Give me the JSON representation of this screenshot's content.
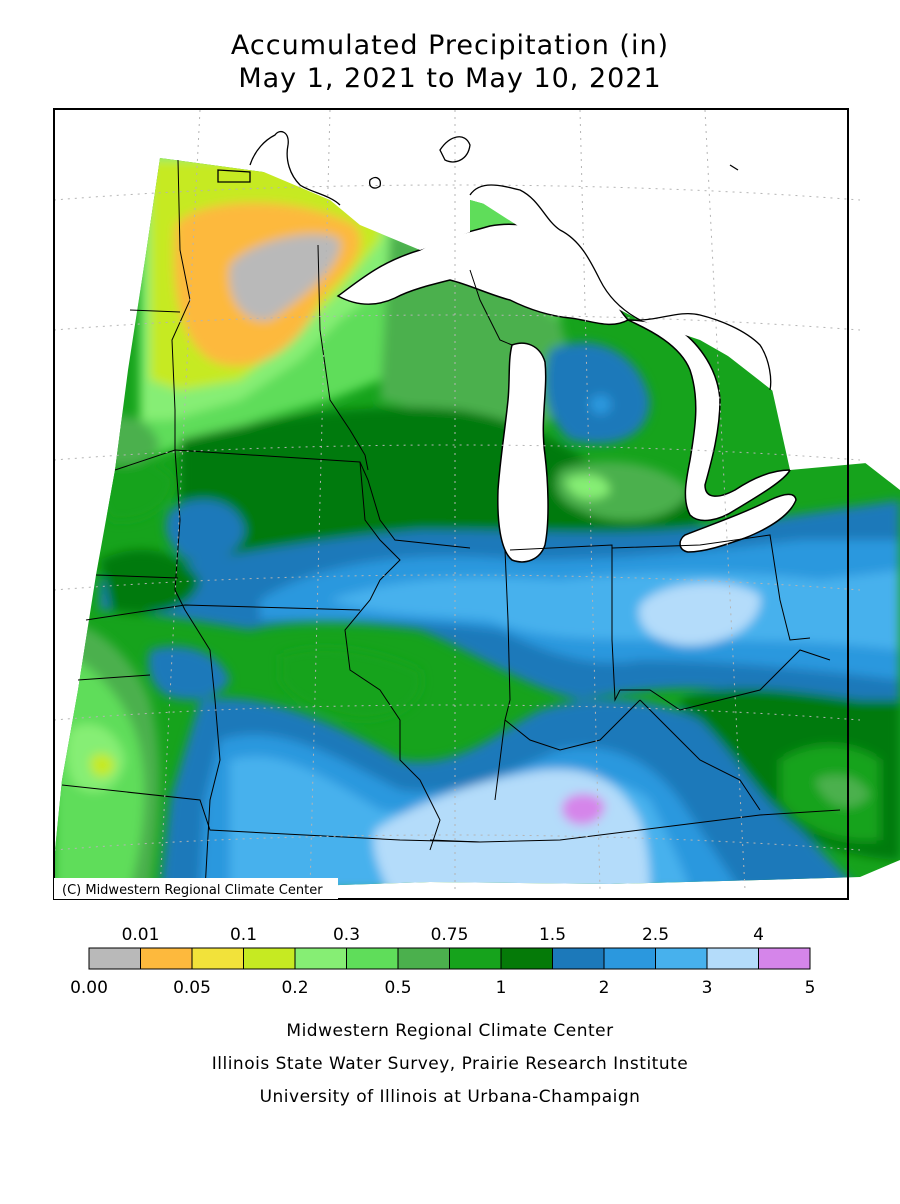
{
  "title": {
    "line1": "Accumulated Precipitation (in)",
    "line2": "May 1, 2021 to May 10, 2021"
  },
  "map": {
    "copyright": "(C) Midwestern Regional Climate Center",
    "colors": {
      "frame": "#000000",
      "water": "#ffffff",
      "grid": "#b4b4b4"
    }
  },
  "legend": {
    "upper_labels": [
      "0.01",
      "0.1",
      "0.3",
      "0.75",
      "1.5",
      "2.5",
      "4"
    ],
    "lower_labels": [
      "0.00",
      "0.05",
      "0.2",
      "0.5",
      "1",
      "2",
      "3",
      "5"
    ],
    "bins": [
      {
        "color": "#b9b9b9"
      },
      {
        "color": "#fdb93d"
      },
      {
        "color": "#f2e23a"
      },
      {
        "color": "#c6ea22"
      },
      {
        "color": "#86ee74"
      },
      {
        "color": "#5fdd5a"
      },
      {
        "color": "#4bb04d"
      },
      {
        "color": "#16a31c"
      },
      {
        "color": "#057a08"
      },
      {
        "color": "#1c79ba"
      },
      {
        "color": "#2b98de"
      },
      {
        "color": "#47b1ed"
      },
      {
        "color": "#b4dcfa"
      },
      {
        "color": "#d585ea"
      }
    ]
  },
  "credits": [
    "Midwestern Regional Climate Center",
    "Illinois State Water Survey, Prairie Research Institute",
    "University of Illinois at Urbana-Champaign"
  ]
}
